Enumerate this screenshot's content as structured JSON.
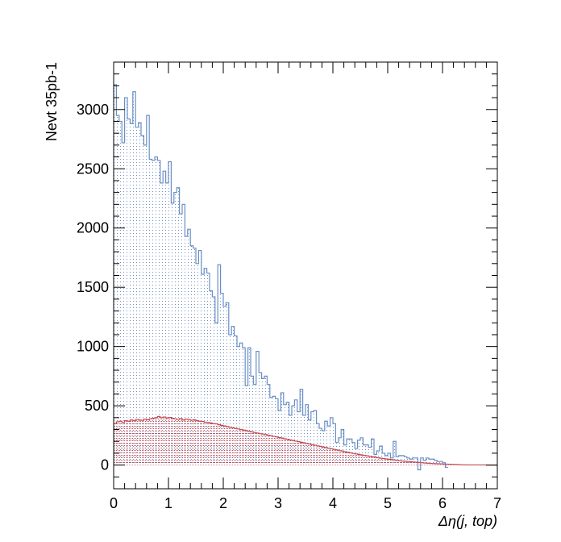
{
  "chart_data": {
    "type": "bar",
    "subtype": "overlaid-histogram",
    "title": "",
    "xlabel": "Δη(j, top)",
    "ylabel": "Nevt 35pb-1",
    "xlim": [
      0,
      7
    ],
    "ylim": [
      -200,
      3400
    ],
    "x_ticks": [
      0,
      1,
      2,
      3,
      4,
      5,
      6,
      7
    ],
    "y_ticks": [
      0,
      500,
      1000,
      1500,
      2000,
      2500,
      3000
    ],
    "bin_width": 0.05,
    "grid": false,
    "legend": "none",
    "series": [
      {
        "color": "#6a8fc4",
        "fill": "dotted",
        "values": [
          3210,
          2950,
          2900,
          2720,
          3100,
          2920,
          2880,
          3150,
          2850,
          2890,
          2780,
          2700,
          2950,
          2580,
          2570,
          2600,
          2570,
          2380,
          2480,
          2380,
          2560,
          2210,
          2300,
          2340,
          2120,
          2200,
          1930,
          1990,
          1850,
          1830,
          1700,
          1810,
          1610,
          1660,
          1620,
          1470,
          1420,
          1200,
          1690,
          1450,
          1340,
          1370,
          1100,
          1170,
          1090,
          1000,
          1030,
          990,
          670,
          990,
          750,
          680,
          960,
          780,
          730,
          750,
          680,
          570,
          580,
          560,
          460,
          610,
          510,
          530,
          420,
          500,
          550,
          450,
          640,
          420,
          510,
          380,
          450,
          460,
          350,
          310,
          290,
          370,
          330,
          400,
          350,
          190,
          230,
          300,
          170,
          220,
          220,
          190,
          140,
          210,
          230,
          170,
          170,
          150,
          220,
          90,
          120,
          160,
          100,
          80,
          100,
          60,
          200,
          70,
          80,
          80,
          70,
          60,
          50,
          60,
          60,
          -40,
          60,
          40,
          60,
          50,
          50,
          40,
          30,
          30,
          20,
          -20
        ]
      },
      {
        "color": "#c44a52",
        "fill": "dense-dots",
        "values": [
          350,
          365,
          370,
          360,
          375,
          370,
          380,
          375,
          385,
          380,
          378,
          388,
          382,
          390,
          395,
          400,
          410,
          400,
          405,
          398,
          402,
          395,
          390,
          385,
          392,
          380,
          388,
          385,
          378,
          382,
          375,
          370,
          368,
          362,
          360,
          355,
          350,
          348,
          340,
          335,
          330,
          325,
          320,
          315,
          310,
          305,
          300,
          295,
          290,
          285,
          280,
          275,
          270,
          265,
          262,
          258,
          252,
          248,
          242,
          238,
          232,
          228,
          222,
          218,
          212,
          208,
          202,
          198,
          192,
          188,
          182,
          178,
          172,
          168,
          162,
          158,
          152,
          148,
          142,
          138,
          132,
          128,
          122,
          118,
          112,
          108,
          103,
          98,
          94,
          90,
          86,
          82,
          78,
          74,
          70,
          66,
          62,
          58,
          55,
          52,
          49,
          46,
          43,
          40,
          37,
          34,
          32,
          30,
          28,
          26,
          24,
          22,
          20,
          18,
          16,
          14,
          13,
          12,
          11,
          10,
          9,
          8,
          7,
          6,
          5,
          4,
          3,
          2,
          2,
          1,
          1,
          1,
          1,
          1,
          1,
          1,
          0,
          0,
          0,
          0
        ]
      }
    ]
  }
}
